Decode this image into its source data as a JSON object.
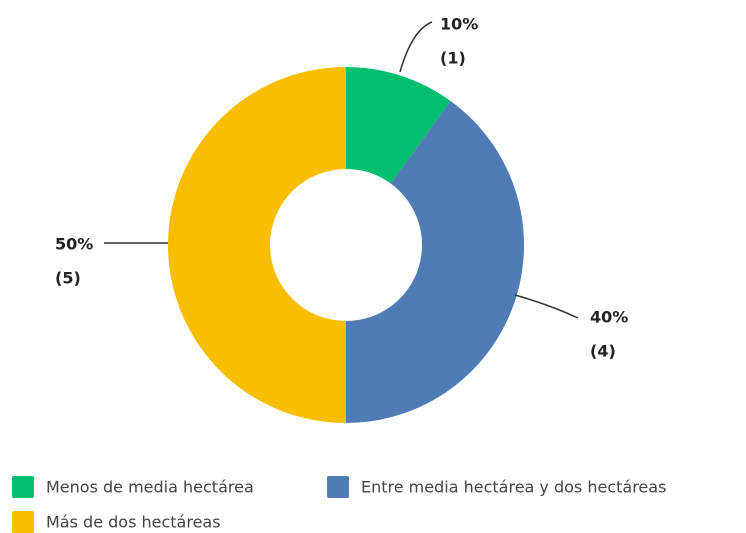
{
  "chart_data": {
    "type": "pie",
    "categories": [
      "Menos de media hectárea",
      "Entre media hectárea y dos hectáreas",
      "Más de dos hectáreas"
    ],
    "values": [
      10,
      40,
      50
    ],
    "value_labels": [
      "10%",
      "40%",
      "50%"
    ],
    "counts": [
      1,
      4,
      5
    ],
    "count_labels": [
      "(1)",
      "(4)",
      "(5)"
    ],
    "colors": [
      "#00bf6f",
      "#507cb6",
      "#f9be00"
    ],
    "legend": "bottom"
  }
}
